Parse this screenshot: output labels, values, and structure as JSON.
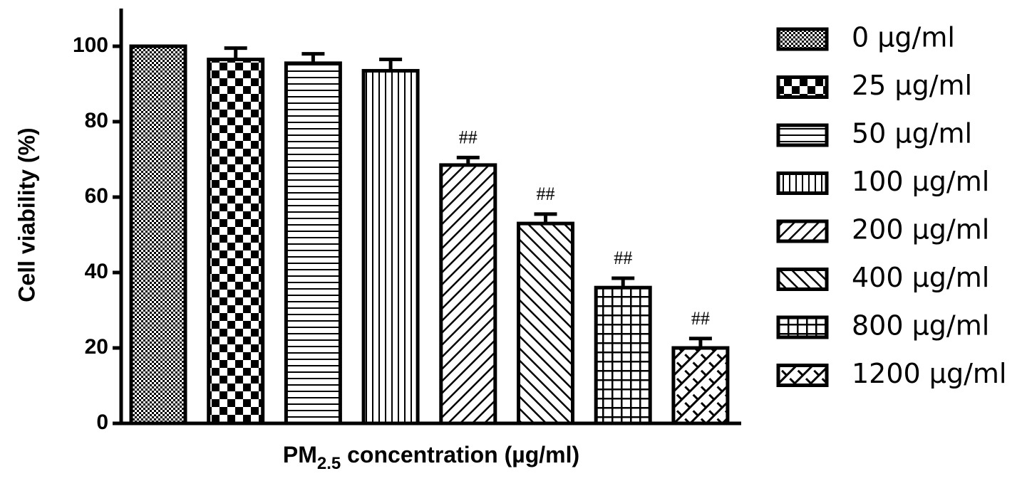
{
  "chart_data": {
    "type": "bar",
    "ylabel": "Cell viability (%)",
    "xlabel": [
      "PM",
      "2.5",
      " concentration (µg/ml)"
    ],
    "categories": [
      "0 µg/ml",
      "25 µg/ml",
      "50 µg/ml",
      "100 µg/ml",
      "200 µg/ml",
      "400 µg/ml",
      "800 µg/ml",
      "1200 µg/ml"
    ],
    "values": [
      100,
      96.5,
      95.5,
      93.5,
      68.5,
      53,
      36,
      20
    ],
    "errors": [
      0,
      3,
      2.5,
      3,
      2,
      2.5,
      2.5,
      2.5
    ],
    "annotations": [
      null,
      null,
      null,
      null,
      "##",
      "##",
      "##",
      "##"
    ],
    "patterns": [
      "dots",
      "checker",
      "hlines",
      "vlines",
      "diag",
      "antidiag",
      "grid",
      "weave"
    ],
    "color": "#000000",
    "ylim": [
      0,
      110
    ],
    "yticks": [
      0,
      20,
      40,
      60,
      80,
      100
    ],
    "legend": "right"
  }
}
